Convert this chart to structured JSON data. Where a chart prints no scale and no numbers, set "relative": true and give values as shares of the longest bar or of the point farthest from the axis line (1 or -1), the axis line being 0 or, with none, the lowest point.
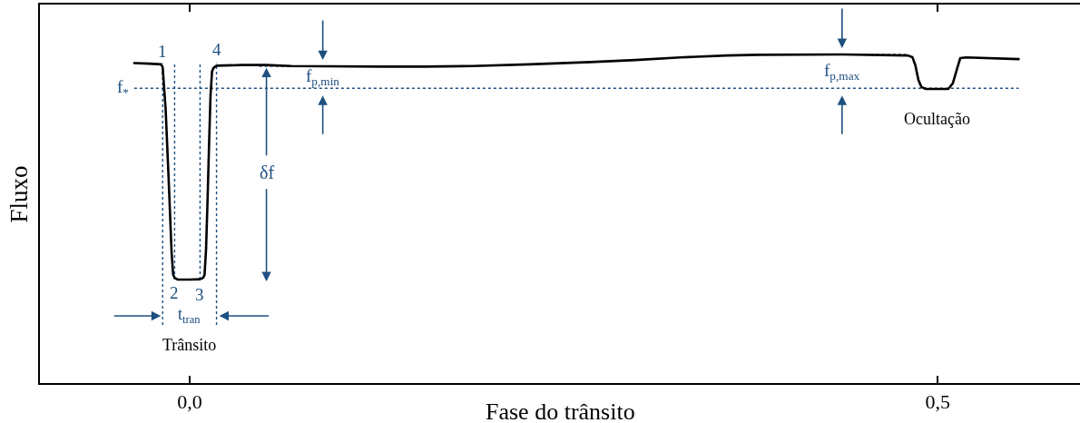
{
  "chart_data": {
    "type": "line",
    "relative": true,
    "xlabel": "Fase do trânsito",
    "ylabel": "Fluxo",
    "tick_labels": "x",
    "line_style": "solid",
    "x": [
      -0.037,
      -0.027,
      -0.019,
      -0.018,
      -0.016,
      -0.014,
      -0.012,
      -0.011,
      -0.01,
      -0.008,
      0.0,
      0.007,
      0.009,
      0.01,
      0.011,
      0.012,
      0.013,
      0.014,
      0.015,
      0.016,
      0.018,
      0.035,
      0.051,
      0.068,
      0.089,
      0.128,
      0.157,
      0.189,
      0.227,
      0.268,
      0.298,
      0.328,
      0.359,
      0.38,
      0.436,
      0.48,
      0.483,
      0.485,
      0.487,
      0.489,
      0.492,
      0.507,
      0.51,
      0.513,
      0.515,
      0.519,
      0.554
    ],
    "series": [
      {
        "color": "#000000",
        "values": [
          0.974,
          0.972,
          0.97,
          0.962,
          0.834,
          0.622,
          0.395,
          0.331,
          0.32,
          0.315,
          0.315,
          0.316,
          0.32,
          0.329,
          0.406,
          0.555,
          0.724,
          0.876,
          0.948,
          0.959,
          0.966,
          0.968,
          0.968,
          0.965,
          0.964,
          0.963,
          0.963,
          0.965,
          0.97,
          0.977,
          0.983,
          0.991,
          0.997,
          0.999,
          1.0,
          0.997,
          0.992,
          0.967,
          0.923,
          0.901,
          0.895,
          0.895,
          0.912,
          0.959,
          0.989,
          0.991,
          0.986
        ]
      }
    ],
    "xlim": [
      -0.1,
      0.595
    ],
    "xticks": [
      {
        "value": 0,
        "label": "0,0"
      },
      {
        "value": 0.5,
        "label": "0,5"
      }
    ],
    "ref_lines": [
      {
        "axis": "y",
        "value": 0.897,
        "label": "f$_{*}$",
        "color": "#1d4f7f",
        "line_style": "dotted"
      },
      {
        "axis": "y",
        "value": 0.964,
        "label": "f$_{p,min}$",
        "color": "#1d4f7f",
        "line_style": "dotted"
      },
      {
        "axis": "y",
        "value": 1.0,
        "label": "f$_{p,max}$",
        "color": "#1d4f7f",
        "line_style": "dotted"
      },
      {
        "axis": "x",
        "value": -0.018,
        "color": "#1d4f7f",
        "line_style": "dotted"
      },
      {
        "axis": "x",
        "value": -0.01,
        "color": "#1d4f7f",
        "line_style": "dotted"
      },
      {
        "axis": "x",
        "value": 0.007,
        "color": "#1d4f7f",
        "line_style": "dotted"
      },
      {
        "axis": "x",
        "value": 0.018,
        "color": "#1d4f7f",
        "line_style": "dotted"
      }
    ],
    "annotations": [
      {
        "text": "1",
        "x": -0.018,
        "y": 0.962
      },
      {
        "text": "2",
        "x": -0.01,
        "y": 0.32
      },
      {
        "text": "3",
        "x": 0.007,
        "y": 0.316
      },
      {
        "text": "4",
        "x": 0.018,
        "y": 0.966
      },
      "δf",
      "t$_{tran}$",
      "Trânsito",
      "Ocultação"
    ]
  }
}
